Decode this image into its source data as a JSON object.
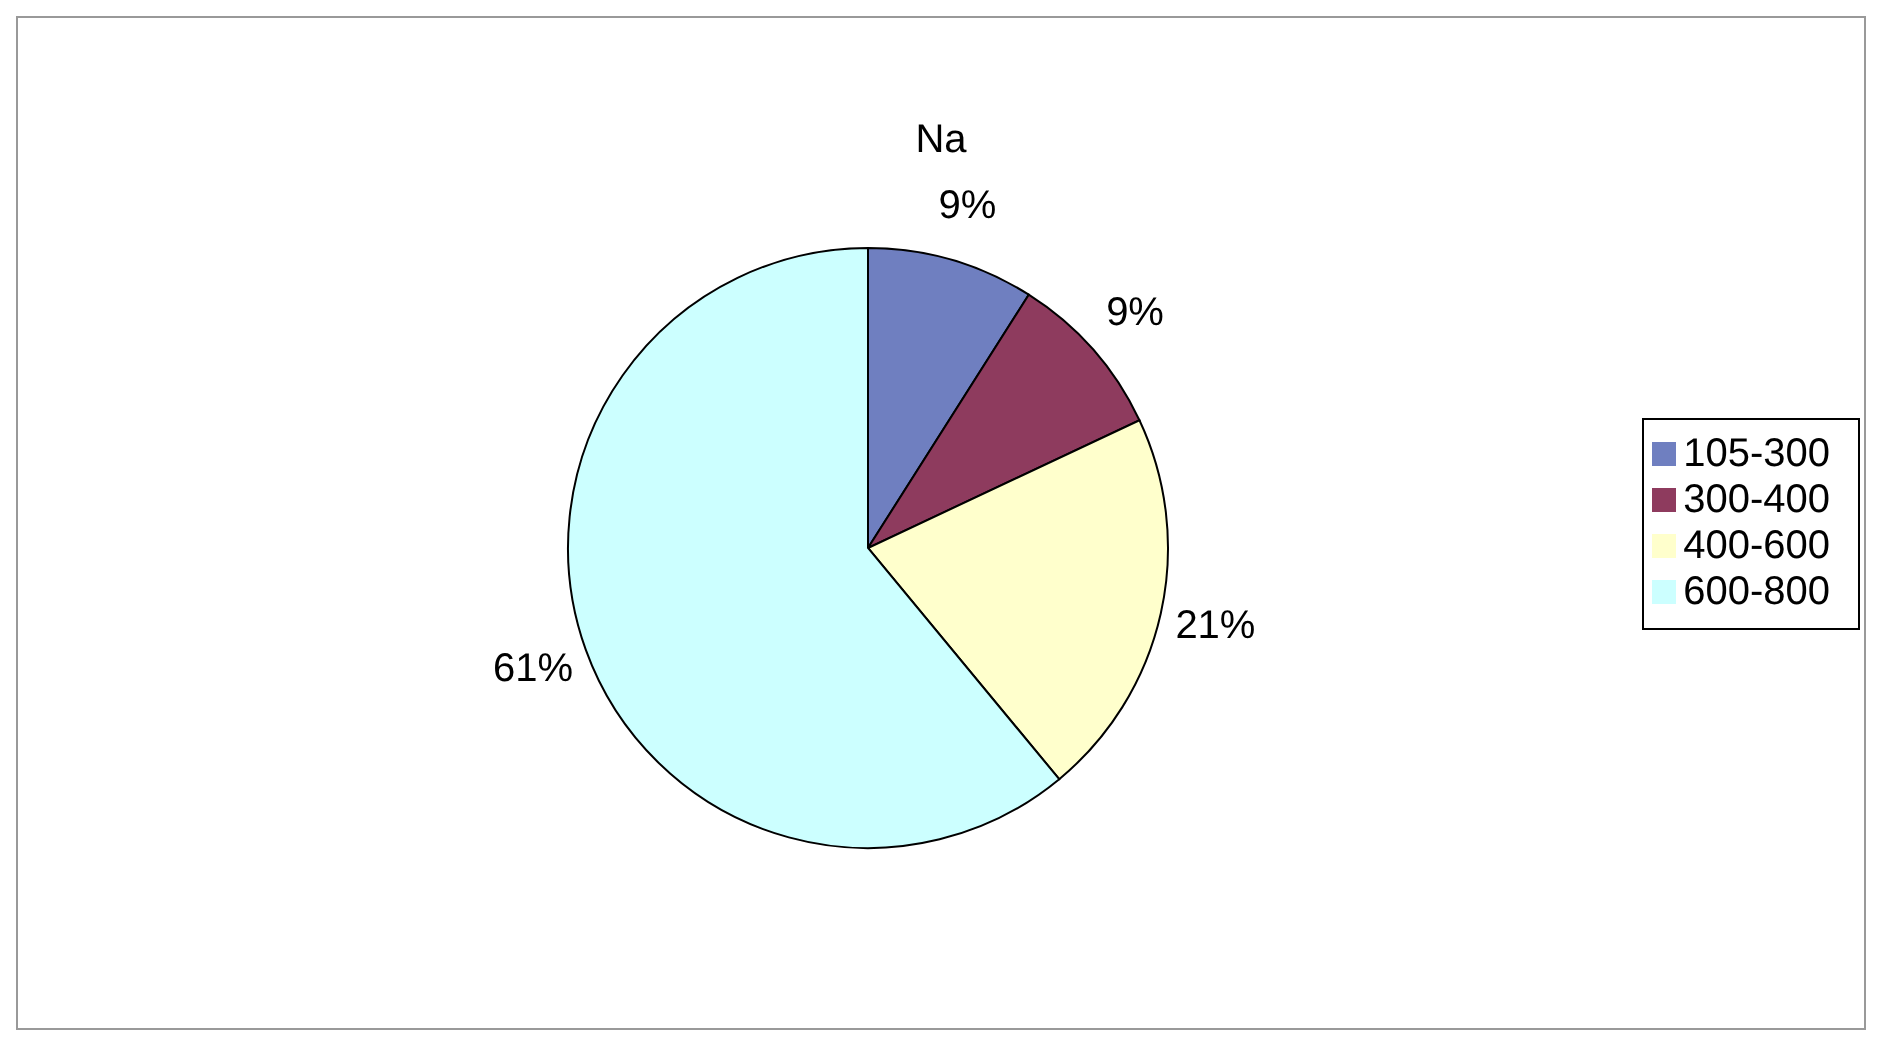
{
  "chart_data": {
    "type": "pie",
    "title": "Na",
    "categories": [
      "105-300",
      "300-400",
      "400-600",
      "600-800"
    ],
    "values": [
      9,
      9,
      21,
      61
    ],
    "colors": [
      "#6f7fc0",
      "#8e3b5e",
      "#ffffcc",
      "#ccffff"
    ],
    "value_labels": [
      "9%",
      "9%",
      "21%",
      "61%"
    ],
    "legend": "right"
  }
}
